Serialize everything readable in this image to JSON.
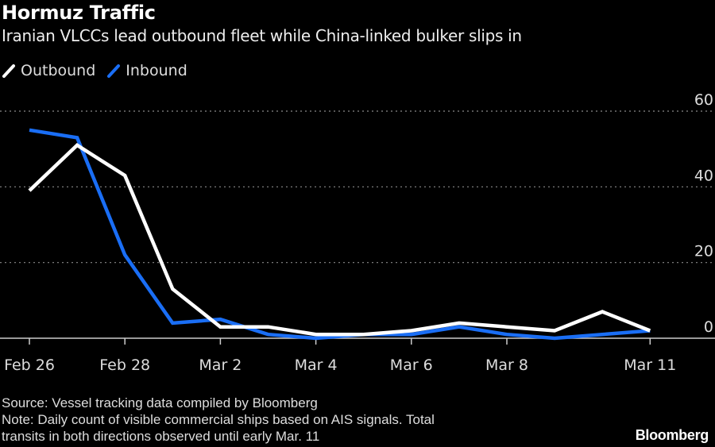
{
  "chart_data": {
    "type": "line",
    "title": "Hormuz Traffic",
    "subtitle": "Iranian VLCCs lead outbound fleet while China-linked bulker slips in",
    "xlabel": "",
    "ylabel": "",
    "x": [
      "Feb 26",
      "Feb 27",
      "Feb 28",
      "Mar 1",
      "Mar 2",
      "Mar 3",
      "Mar 4",
      "Mar 5",
      "Mar 6",
      "Mar 7",
      "Mar 8",
      "Mar 9",
      "Mar 10",
      "Mar 11"
    ],
    "x_tick_labels": [
      "Feb 26",
      "Feb 28",
      "Mar 2",
      "Mar 4",
      "Mar 6",
      "Mar 8",
      "Mar 11"
    ],
    "x_tick_indices": [
      0,
      2,
      4,
      6,
      8,
      10,
      13
    ],
    "ylim": [
      0,
      60
    ],
    "y_ticks": [
      0,
      20,
      40,
      60
    ],
    "y_tick_labels": [
      "0",
      "20",
      "40",
      "60"
    ],
    "grid": true,
    "legend_position": "top-left",
    "series": [
      {
        "name": "Outbound",
        "color": "#ffffff",
        "values": [
          39,
          51,
          43,
          13,
          3,
          3,
          1,
          1,
          2,
          4,
          3,
          2,
          7,
          2
        ]
      },
      {
        "name": "Inbound",
        "color": "#1a6ef5",
        "values": [
          55,
          53,
          22,
          4,
          5,
          1,
          0,
          1,
          1,
          3,
          1,
          0,
          1,
          2
        ]
      }
    ]
  },
  "footer": {
    "source": "Source: Vessel tracking data compiled by Bloomberg",
    "note_line1": "Note: Daily count of visible commercial ships based on AIS signals. Total",
    "note_line2": "transits in both directions observed until early Mar. 11",
    "brand": "Bloomberg"
  }
}
